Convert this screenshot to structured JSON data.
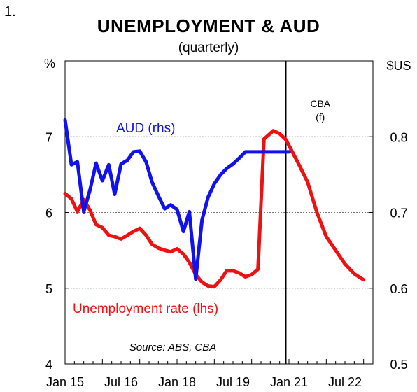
{
  "figure_number": "1.",
  "chart_data": {
    "type": "line",
    "title": "UNEMPLOYMENT & AUD",
    "subtitle": "(quarterly)",
    "left_axis_label": "%",
    "right_axis_label": "$US",
    "left_ylim": [
      4,
      8
    ],
    "right_ylim": [
      0.5,
      0.9
    ],
    "left_ticks": [
      "4",
      "5",
      "6",
      "7"
    ],
    "right_ticks": [
      "0.5",
      "0.6",
      "0.7",
      "0.8"
    ],
    "left_tick_values": [
      4,
      5,
      6,
      7
    ],
    "right_tick_values": [
      0.5,
      0.6,
      0.7,
      0.8
    ],
    "gridlines": [
      5,
      6,
      7
    ],
    "x_range": [
      2015.0,
      2023.25
    ],
    "x_ticks": [
      {
        "label": "Jan 15",
        "x": 2015.0
      },
      {
        "label": "Jul 16",
        "x": 2016.5
      },
      {
        "label": "Jan 18",
        "x": 2018.0
      },
      {
        "label": "Jul 19",
        "x": 2019.5
      },
      {
        "label": "Jan 21",
        "x": 2021.0
      },
      {
        "label": "Jul 22",
        "x": 2022.5
      }
    ],
    "forecast_line": {
      "x": 2020.92,
      "label_line1": "CBA",
      "label_line2": "(f)"
    },
    "source_note": "Source: ABS, CBA",
    "series": [
      {
        "name": "Unemployment rate (lhs)",
        "axis": "left",
        "color": "#ee1111",
        "points": [
          [
            2015.0,
            6.25
          ],
          [
            2015.17,
            6.18
          ],
          [
            2015.33,
            6.01
          ],
          [
            2015.5,
            6.17
          ],
          [
            2015.67,
            6.03
          ],
          [
            2015.83,
            5.84
          ],
          [
            2016.0,
            5.8
          ],
          [
            2016.17,
            5.7
          ],
          [
            2016.33,
            5.68
          ],
          [
            2016.5,
            5.65
          ],
          [
            2016.67,
            5.7
          ],
          [
            2016.83,
            5.75
          ],
          [
            2017.0,
            5.79
          ],
          [
            2017.17,
            5.7
          ],
          [
            2017.33,
            5.58
          ],
          [
            2017.5,
            5.53
          ],
          [
            2017.67,
            5.5
          ],
          [
            2017.83,
            5.48
          ],
          [
            2018.0,
            5.52
          ],
          [
            2018.17,
            5.45
          ],
          [
            2018.33,
            5.34
          ],
          [
            2018.5,
            5.18
          ],
          [
            2018.67,
            5.08
          ],
          [
            2018.83,
            5.03
          ],
          [
            2019.0,
            5.02
          ],
          [
            2019.17,
            5.11
          ],
          [
            2019.33,
            5.23
          ],
          [
            2019.5,
            5.23
          ],
          [
            2019.67,
            5.2
          ],
          [
            2019.83,
            5.15
          ],
          [
            2020.0,
            5.18
          ],
          [
            2020.17,
            5.25
          ],
          [
            2020.33,
            6.97
          ],
          [
            2020.58,
            7.08
          ],
          [
            2020.75,
            7.04
          ],
          [
            2020.92,
            6.96
          ],
          [
            2021.25,
            6.65
          ],
          [
            2021.5,
            6.4
          ],
          [
            2021.75,
            6.0
          ],
          [
            2022.0,
            5.68
          ],
          [
            2022.25,
            5.5
          ],
          [
            2022.5,
            5.32
          ],
          [
            2022.75,
            5.19
          ],
          [
            2023.0,
            5.11
          ]
        ]
      },
      {
        "name": "AUD (rhs)",
        "axis": "right",
        "color": "#1111ee",
        "points": [
          [
            2015.0,
            0.822
          ],
          [
            2015.17,
            0.763
          ],
          [
            2015.33,
            0.767
          ],
          [
            2015.5,
            0.701
          ],
          [
            2015.67,
            0.73
          ],
          [
            2015.83,
            0.765
          ],
          [
            2016.0,
            0.742
          ],
          [
            2016.17,
            0.763
          ],
          [
            2016.33,
            0.724
          ],
          [
            2016.5,
            0.764
          ],
          [
            2016.67,
            0.769
          ],
          [
            2016.83,
            0.78
          ],
          [
            2017.0,
            0.781
          ],
          [
            2017.17,
            0.767
          ],
          [
            2017.33,
            0.74
          ],
          [
            2017.5,
            0.722
          ],
          [
            2017.67,
            0.705
          ],
          [
            2017.83,
            0.71
          ],
          [
            2018.0,
            0.704
          ],
          [
            2018.17,
            0.675
          ],
          [
            2018.33,
            0.701
          ],
          [
            2018.5,
            0.612
          ],
          [
            2018.67,
            0.69
          ],
          [
            2018.83,
            0.72
          ],
          [
            2019.0,
            0.738
          ],
          [
            2019.17,
            0.75
          ],
          [
            2019.33,
            0.758
          ],
          [
            2019.5,
            0.764
          ],
          [
            2019.67,
            0.772
          ],
          [
            2019.83,
            0.78
          ],
          [
            2020.0,
            0.78
          ],
          [
            2020.33,
            0.78
          ],
          [
            2020.67,
            0.78
          ],
          [
            2021.0,
            0.78
          ]
        ]
      }
    ]
  }
}
